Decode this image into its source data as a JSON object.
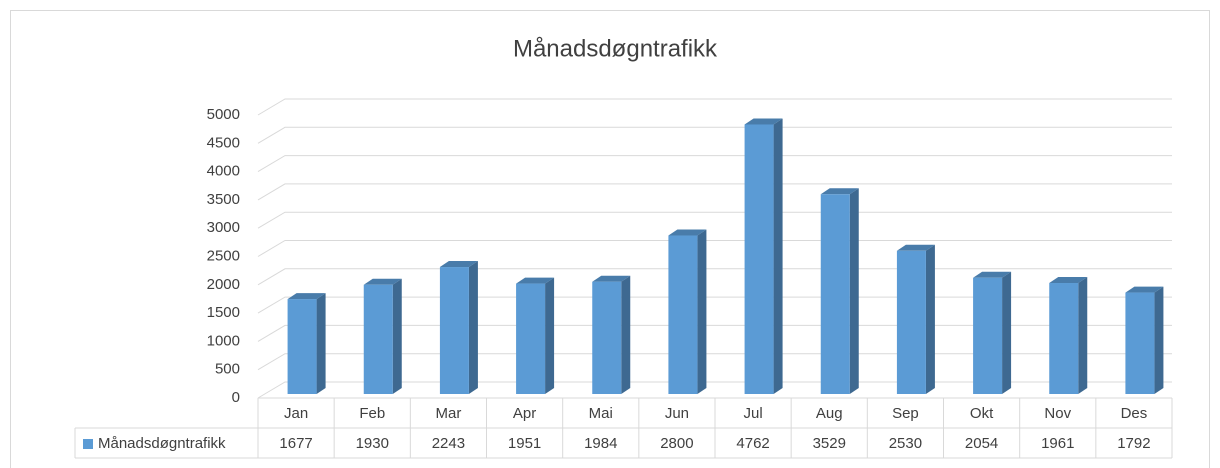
{
  "chart_data": {
    "type": "bar3d",
    "title": "Månadsdøgntrafikk",
    "categories": [
      "Jan",
      "Feb",
      "Mar",
      "Apr",
      "Mai",
      "Jun",
      "Jul",
      "Aug",
      "Sep",
      "Okt",
      "Nov",
      "Des"
    ],
    "series": [
      {
        "name": "Månadsdøgntrafikk",
        "color": "#5b9bd5",
        "values": [
          1677,
          1930,
          2243,
          1951,
          1984,
          2800,
          4762,
          3529,
          2530,
          2054,
          1961,
          1792
        ]
      }
    ],
    "ylim": [
      0,
      5000
    ],
    "yticks": [
      0,
      500,
      1000,
      1500,
      2000,
      2500,
      3000,
      3500,
      4000,
      4500,
      5000
    ],
    "grid": true,
    "data_table": true
  }
}
